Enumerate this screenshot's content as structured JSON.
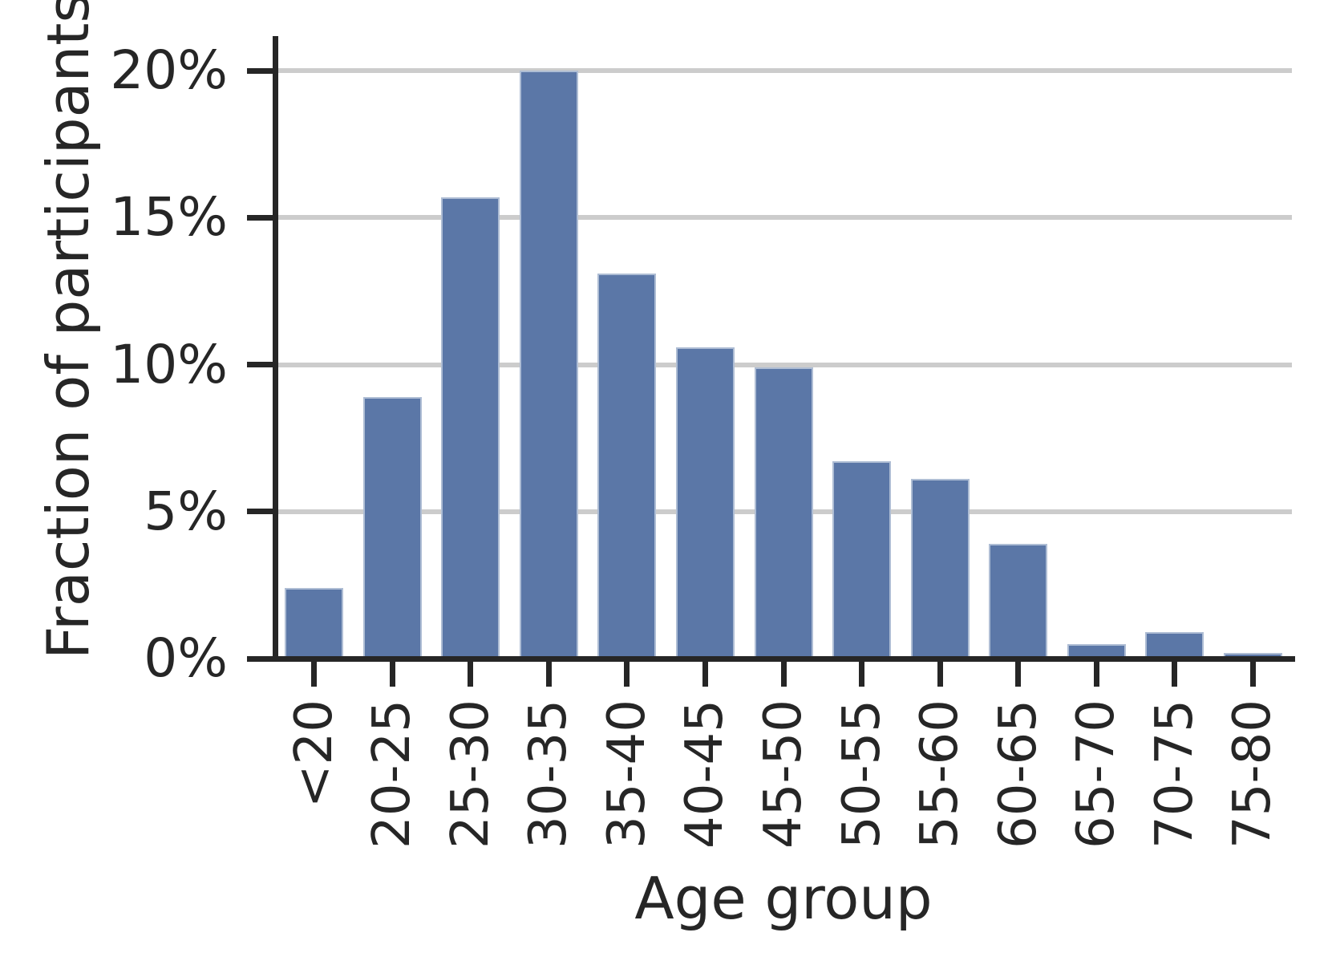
{
  "figure": {
    "background": "#ffffff"
  },
  "chart_data": {
    "type": "bar",
    "title": "",
    "xlabel": "Age group",
    "ylabel": "Fraction of participants",
    "unit": "%",
    "categories": [
      "<20",
      "20-25",
      "25-30",
      "30-35",
      "35-40",
      "40-45",
      "45-50",
      "50-55",
      "55-60",
      "60-65",
      "65-70",
      "70-75",
      "75-80"
    ],
    "values": [
      2.4,
      8.9,
      15.7,
      20.0,
      13.1,
      10.6,
      9.9,
      6.7,
      6.1,
      3.9,
      0.5,
      0.9,
      0.2
    ],
    "ylim": [
      0,
      21.2
    ],
    "yticks": [
      {
        "value": 0,
        "label": "0%"
      },
      {
        "value": 5,
        "label": "5%"
      },
      {
        "value": 10,
        "label": "10%"
      },
      {
        "value": 15,
        "label": "15%"
      },
      {
        "value": 20,
        "label": "20%"
      }
    ],
    "grid": "horizontal",
    "legend": "none",
    "xtick_rotation_deg": 90,
    "colors": {
      "bar_fill": "#5b77a7",
      "bar_edge": "#aebdd4",
      "grid": "#cccccc",
      "axis": "#262626",
      "text": "#262626"
    }
  }
}
